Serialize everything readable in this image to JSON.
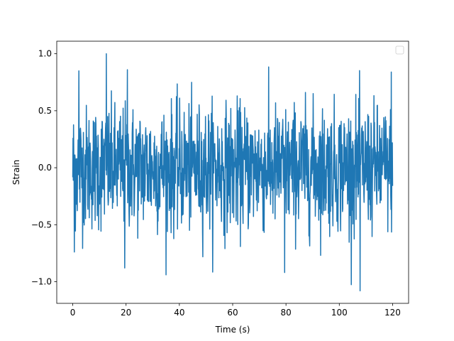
{
  "chart_data": {
    "type": "line",
    "title": "",
    "xlabel": "Time (s)",
    "ylabel": "Strain",
    "xlim": [
      -6.0,
      126.0
    ],
    "ylim": [
      -1.19,
      1.11
    ],
    "xticks": [
      0,
      20,
      40,
      60,
      80,
      100,
      120
    ],
    "xtick_labels": [
      "0",
      "20",
      "40",
      "60",
      "80",
      "100",
      "120"
    ],
    "yticks": [
      -1.0,
      -0.5,
      0.0,
      0.5,
      1.0
    ],
    "ytick_labels": [
      "−1.0",
      "−0.5",
      "0.0",
      "0.5",
      "1.0"
    ],
    "grid": false,
    "legend": {
      "placement": "top-right",
      "entries": []
    },
    "series": [
      {
        "color": "#1f77b4",
        "sample_rate_hz": 10,
        "x_range": [
          0,
          120
        ],
        "signal_description": "noise-like strain, 1201 samples",
        "envelope_min": -1.08,
        "envelope_max": 1.0,
        "notable_points": [
          {
            "x": 12.6,
            "y": 1.0
          },
          {
            "x": 20.5,
            "y": 0.86
          },
          {
            "x": 2.3,
            "y": 0.85
          },
          {
            "x": 119.5,
            "y": 0.84
          },
          {
            "x": 0.6,
            "y": -0.74
          },
          {
            "x": 19.5,
            "y": -0.88
          },
          {
            "x": 79.5,
            "y": -0.92
          },
          {
            "x": 107.8,
            "y": -1.08
          }
        ]
      }
    ]
  }
}
